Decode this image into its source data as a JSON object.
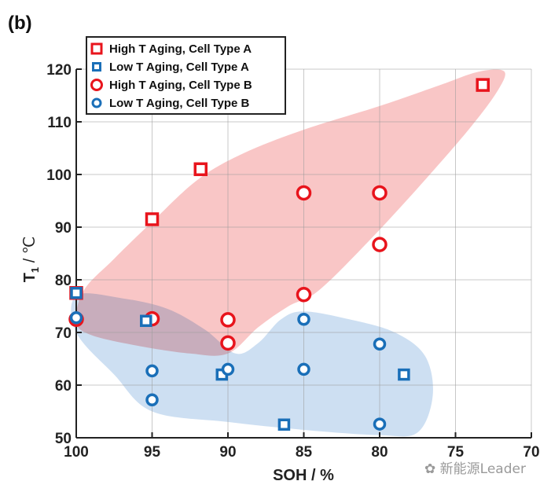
{
  "panel_label": "(b)",
  "watermark": "新能源Leader",
  "chart_data": {
    "type": "scatter",
    "title": "",
    "xlabel": "SOH / %",
    "ylabel_main": "T",
    "ylabel_sub": "1",
    "ylabel_unit": " / ℃",
    "xlim": [
      100,
      70
    ],
    "ylim": [
      50,
      120
    ],
    "x_reversed": true,
    "xticks": [
      100,
      95,
      90,
      85,
      80,
      75,
      70
    ],
    "yticks": [
      50,
      60,
      70,
      80,
      90,
      100,
      110,
      120
    ],
    "grid": true,
    "legend_position": "top-left",
    "regions": [
      {
        "name": "High T Aging region",
        "color": "#f5a3a3",
        "outline": [
          [
            100,
            72
          ],
          [
            99.5,
            78
          ],
          [
            97.5,
            84
          ],
          [
            95,
            91
          ],
          [
            92,
            99
          ],
          [
            89,
            104
          ],
          [
            85,
            108.5
          ],
          [
            80,
            113
          ],
          [
            76,
            117
          ],
          [
            73.5,
            119.5
          ],
          [
            71.8,
            119.6
          ],
          [
            72.2,
            116
          ],
          [
            74,
            109
          ],
          [
            77,
            99
          ],
          [
            80.5,
            88
          ],
          [
            84,
            78
          ],
          [
            86,
            75
          ],
          [
            88,
            71
          ],
          [
            90,
            66
          ],
          [
            92.5,
            66
          ],
          [
            96,
            67.5
          ],
          [
            99,
            69.5
          ],
          [
            100,
            72
          ]
        ]
      },
      {
        "name": "Low T Aging region",
        "color": "#a9c8e8",
        "outline": [
          [
            100,
            77
          ],
          [
            97,
            76.5
          ],
          [
            94,
            74.5
          ],
          [
            91.5,
            70.5
          ],
          [
            89.5,
            66
          ],
          [
            88,
            68
          ],
          [
            86.5,
            72.5
          ],
          [
            85,
            74
          ],
          [
            82,
            72.5
          ],
          [
            79,
            70
          ],
          [
            77,
            65.5
          ],
          [
            76.5,
            58
          ],
          [
            77.5,
            51
          ],
          [
            80,
            50.5
          ],
          [
            85,
            51.5
          ],
          [
            90,
            53
          ],
          [
            95,
            55
          ],
          [
            97.5,
            62
          ],
          [
            100,
            70
          ],
          [
            100,
            77
          ]
        ]
      }
    ],
    "series": [
      {
        "name": "High T Aging, Cell Type A",
        "marker": "square",
        "color": "#e8141c",
        "points": [
          [
            100,
            77.5
          ],
          [
            95,
            91.5
          ],
          [
            91.8,
            101
          ],
          [
            73.2,
            117
          ]
        ]
      },
      {
        "name": "Low T Aging, Cell Type A",
        "marker": "square",
        "color": "#1a6fb8",
        "points": [
          [
            100,
            77.5
          ],
          [
            95.4,
            72.2
          ],
          [
            90.4,
            62
          ],
          [
            86.3,
            52.5
          ],
          [
            78.4,
            62
          ]
        ]
      },
      {
        "name": "High T Aging, Cell Type B",
        "marker": "circle",
        "color": "#e8141c",
        "points": [
          [
            100,
            72.5
          ],
          [
            95,
            72.6
          ],
          [
            90,
            72.4
          ],
          [
            90,
            68
          ],
          [
            85,
            96.5
          ],
          [
            85,
            77.2
          ],
          [
            80,
            96.5
          ],
          [
            80,
            86.7
          ]
        ]
      },
      {
        "name": "Low T Aging, Cell Type B",
        "marker": "circle",
        "color": "#1a6fb8",
        "points": [
          [
            100,
            72.8
          ],
          [
            95,
            62.7
          ],
          [
            95,
            57.2
          ],
          [
            90,
            63
          ],
          [
            85,
            72.5
          ],
          [
            85,
            63
          ],
          [
            80,
            67.8
          ],
          [
            80,
            52.6
          ]
        ]
      }
    ]
  }
}
